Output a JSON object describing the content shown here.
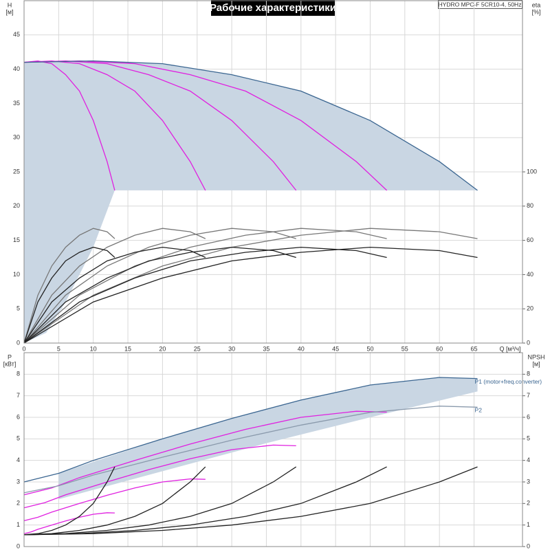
{
  "header": {
    "title": "Рабочие характеристики",
    "model": "HYDRO MPC-F 5CR10-4, 50Hz"
  },
  "chart_data": [
    {
      "type": "line",
      "y_label": "H",
      "y_unit": "[м]",
      "y2_label": "eta",
      "y2_unit": "[%]",
      "x_label": "Q [м³/ч]",
      "xlim": [
        0,
        72
      ],
      "xticks": [
        0,
        5,
        10,
        15,
        20,
        25,
        30,
        35,
        40,
        45,
        50,
        55,
        60,
        65
      ],
      "ylim": [
        0,
        50
      ],
      "yticks": [
        0,
        5,
        10,
        15,
        20,
        25,
        30,
        35,
        40,
        45
      ],
      "y2lim": [
        0,
        200
      ],
      "y2ticks": [
        0,
        20,
        40,
        60,
        80,
        100
      ],
      "grid": true,
      "area": {
        "color": "#c9d6e3",
        "x": [
          0,
          10,
          20,
          30,
          40,
          50,
          60,
          65.5,
          13.1,
          10,
          6,
          3.2,
          0
        ],
        "values": [
          41,
          41.2,
          40.8,
          39.2,
          36.8,
          32.5,
          26.5,
          22.3,
          22.3,
          14,
          6,
          1.5,
          0
        ]
      },
      "series": [
        {
          "color": "#e020e0",
          "x": [
            0,
            2,
            4,
            6,
            8,
            10,
            12,
            13.1
          ],
          "values": [
            41,
            41.2,
            40.8,
            39.2,
            36.8,
            32.5,
            26.5,
            22.3
          ]
        },
        {
          "color": "#e020e0",
          "x": [
            0,
            4,
            8,
            12,
            16,
            20,
            24,
            26.2
          ],
          "values": [
            41,
            41.2,
            40.8,
            39.2,
            36.8,
            32.5,
            26.5,
            22.3
          ]
        },
        {
          "color": "#e020e0",
          "x": [
            0,
            6,
            12,
            18,
            24,
            30,
            36,
            39.3
          ],
          "values": [
            41,
            41.2,
            40.8,
            39.2,
            36.8,
            32.5,
            26.5,
            22.3
          ]
        },
        {
          "color": "#e020e0",
          "x": [
            0,
            8,
            16,
            24,
            32,
            40,
            48,
            52.4
          ],
          "values": [
            41,
            41.2,
            40.8,
            39.2,
            36.8,
            32.5,
            26.5,
            22.3
          ]
        },
        {
          "color": "#3a6590",
          "x": [
            0,
            10,
            20,
            30,
            40,
            50,
            60,
            65.5
          ],
          "values": [
            41,
            41.2,
            40.8,
            39.2,
            36.8,
            32.5,
            26.5,
            22.3
          ]
        },
        {
          "color": "#777777",
          "axis": "y2",
          "x": [
            0,
            2,
            4,
            6,
            8,
            10,
            12,
            13.1
          ],
          "values": [
            0,
            28,
            45,
            56,
            63,
            67,
            65,
            61
          ]
        },
        {
          "color": "#777777",
          "axis": "y2",
          "x": [
            0,
            4,
            8,
            12,
            16,
            20,
            24,
            26.2
          ],
          "values": [
            0,
            28,
            45,
            56,
            63,
            67,
            65,
            61
          ]
        },
        {
          "color": "#777777",
          "axis": "y2",
          "x": [
            0,
            6,
            12,
            18,
            24,
            30,
            36,
            39.3
          ],
          "values": [
            0,
            28,
            45,
            56,
            63,
            67,
            65,
            61
          ]
        },
        {
          "color": "#777777",
          "axis": "y2",
          "x": [
            0,
            8,
            16,
            24,
            32,
            40,
            48,
            52.4
          ],
          "values": [
            0,
            28,
            45,
            56,
            63,
            67,
            65,
            61
          ]
        },
        {
          "color": "#777777",
          "axis": "y2",
          "x": [
            0,
            10,
            20,
            30,
            40,
            50,
            60,
            65.5
          ],
          "values": [
            0,
            28,
            45,
            56,
            63,
            67,
            65,
            61
          ]
        },
        {
          "color": "#222222",
          "axis": "y2",
          "x": [
            0,
            2,
            4,
            6,
            8,
            10,
            12,
            13.1
          ],
          "values": [
            0,
            24,
            38,
            48,
            53,
            56,
            54,
            50
          ]
        },
        {
          "color": "#222222",
          "axis": "y2",
          "x": [
            0,
            4,
            8,
            12,
            16,
            20,
            24,
            26.2
          ],
          "values": [
            0,
            24,
            38,
            48,
            53,
            56,
            54,
            50
          ]
        },
        {
          "color": "#222222",
          "axis": "y2",
          "x": [
            0,
            6,
            12,
            18,
            24,
            30,
            36,
            39.3
          ],
          "values": [
            0,
            24,
            38,
            48,
            53,
            56,
            54,
            50
          ]
        },
        {
          "color": "#222222",
          "axis": "y2",
          "x": [
            0,
            8,
            16,
            24,
            32,
            40,
            48,
            52.4
          ],
          "values": [
            0,
            24,
            38,
            48,
            53,
            56,
            54,
            50
          ]
        },
        {
          "color": "#222222",
          "axis": "y2",
          "x": [
            0,
            10,
            20,
            30,
            40,
            50,
            60,
            65.5
          ],
          "values": [
            0,
            24,
            38,
            48,
            53,
            56,
            54,
            50
          ]
        }
      ]
    },
    {
      "type": "line",
      "y_label": "P",
      "y_unit": "[кВт]",
      "y2_label": "NPSH",
      "y2_unit": "[м]",
      "xlim": [
        0,
        72
      ],
      "ylim": [
        0,
        9
      ],
      "yticks": [
        0,
        1,
        2,
        3,
        4,
        5,
        6,
        7,
        8
      ],
      "y2lim": [
        0,
        9
      ],
      "y2ticks": [
        0,
        1,
        2,
        3,
        4,
        5,
        6,
        7,
        8
      ],
      "grid": true,
      "area": {
        "color": "#c9d6e3",
        "x": [
          5,
          20,
          30,
          40,
          50,
          60,
          65.5,
          65.5,
          50,
          35,
          20,
          5
        ],
        "values": [
          3.4,
          5.0,
          5.95,
          6.8,
          7.5,
          7.85,
          7.8,
          7.2,
          6.0,
          4.8,
          3.5,
          2.2
        ]
      },
      "series": [
        {
          "color": "#e020e0",
          "x": [
            0,
            1,
            2,
            4,
            6,
            8,
            10,
            12,
            13.1
          ],
          "values": [
            0.6,
            0.68,
            0.8,
            1.0,
            1.19,
            1.36,
            1.5,
            1.57,
            1.56
          ]
        },
        {
          "color": "#e020e0",
          "x": [
            0,
            2,
            4,
            8,
            12,
            16,
            20,
            24,
            26.2
          ],
          "values": [
            1.2,
            1.36,
            1.6,
            2.0,
            2.38,
            2.72,
            3.0,
            3.14,
            3.12
          ]
        },
        {
          "color": "#e020e0",
          "x": [
            0,
            3,
            6,
            12,
            18,
            24,
            30,
            36,
            39.3
          ],
          "values": [
            1.8,
            2.04,
            2.4,
            3.0,
            3.57,
            4.08,
            4.5,
            4.71,
            4.68
          ]
        },
        {
          "color": "#e020e0",
          "x": [
            0,
            4,
            8,
            16,
            24,
            32,
            40,
            48,
            52.4
          ],
          "values": [
            2.4,
            2.72,
            3.2,
            4.0,
            4.76,
            5.44,
            6.0,
            6.28,
            6.24
          ]
        },
        {
          "name": "P1 (motor+freq.converter)",
          "color": "#3a6590",
          "x": [
            0,
            5,
            10,
            20,
            30,
            40,
            50,
            60,
            65.5
          ],
          "values": [
            3.0,
            3.4,
            4.0,
            5.0,
            5.95,
            6.8,
            7.5,
            7.85,
            7.8
          ]
        },
        {
          "name": "P2",
          "color": "#8a9aac",
          "x": [
            0,
            5,
            10,
            20,
            30,
            40,
            50,
            60,
            65.5
          ],
          "values": [
            2.5,
            2.82,
            3.32,
            4.15,
            4.94,
            5.64,
            6.23,
            6.52,
            6.47
          ]
        },
        {
          "color": "#222222",
          "axis": "y2",
          "x": [
            0,
            2,
            4,
            6,
            8,
            10,
            12,
            13.1
          ],
          "values": [
            0.55,
            0.6,
            0.75,
            1.0,
            1.4,
            2.0,
            3.0,
            3.7
          ]
        },
        {
          "color": "#222222",
          "axis": "y2",
          "x": [
            0,
            4,
            8,
            12,
            16,
            20,
            24,
            26.2
          ],
          "values": [
            0.55,
            0.6,
            0.75,
            1.0,
            1.4,
            2.0,
            3.0,
            3.7
          ]
        },
        {
          "color": "#222222",
          "axis": "y2",
          "x": [
            0,
            6,
            12,
            18,
            24,
            30,
            36,
            39.3
          ],
          "values": [
            0.55,
            0.6,
            0.75,
            1.0,
            1.4,
            2.0,
            3.0,
            3.7
          ]
        },
        {
          "color": "#222222",
          "axis": "y2",
          "x": [
            0,
            8,
            16,
            24,
            32,
            40,
            48,
            52.4
          ],
          "values": [
            0.55,
            0.6,
            0.75,
            1.0,
            1.4,
            2.0,
            3.0,
            3.7
          ]
        },
        {
          "color": "#222222",
          "axis": "y2",
          "x": [
            0,
            10,
            20,
            30,
            40,
            50,
            60,
            65.5
          ],
          "values": [
            0.55,
            0.6,
            0.75,
            1.0,
            1.4,
            2.0,
            3.0,
            3.7
          ]
        }
      ]
    }
  ]
}
